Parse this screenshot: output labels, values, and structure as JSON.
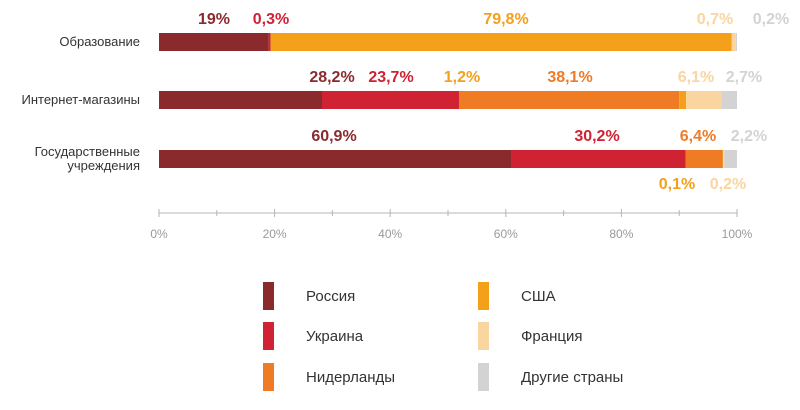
{
  "chart_data": {
    "type": "bar",
    "orientation": "horizontal",
    "stacked": true,
    "categories": [
      "Образование",
      "Интернет-магазины",
      "Государственные учреждения"
    ],
    "category_label_lines": [
      [
        "Образование"
      ],
      [
        "Интернет-магазины"
      ],
      [
        "Государственные",
        "учреждения"
      ]
    ],
    "series": [
      {
        "name": "Россия",
        "color": "#8b2a2d",
        "values": [
          19,
          28.2,
          60.9
        ],
        "labels": [
          "19%",
          "28,2%",
          "60,9%"
        ]
      },
      {
        "name": "Украина",
        "color": "#cf2233",
        "values": [
          0.3,
          23.7,
          30.2
        ],
        "labels": [
          "0,3%",
          "23,7%",
          "30,2%"
        ]
      },
      {
        "name": "Нидерланды",
        "color": "#ef7b25",
        "values": [
          0,
          38.1,
          6.4
        ],
        "labels": [
          "",
          "38,1%",
          "6,4%"
        ]
      },
      {
        "name": "США",
        "color": "#f4a01b",
        "values": [
          79.8,
          1.2,
          0.1
        ],
        "labels": [
          "79,8%",
          "1,2%",
          "0,1%"
        ]
      },
      {
        "name": "Франция",
        "color": "#fad59f",
        "values": [
          0.7,
          6.1,
          0.2
        ],
        "labels": [
          "0,7%",
          "6,1%",
          "0,2%"
        ]
      },
      {
        "name": "Другие страны",
        "color": "#d3d3d3",
        "values": [
          0.2,
          2.7,
          2.2
        ],
        "labels": [
          "0,2%",
          "2,7%",
          "2,2%"
        ]
      }
    ],
    "xlim": [
      0,
      100
    ],
    "xticks": [
      0,
      20,
      40,
      60,
      80,
      100
    ],
    "xtick_labels": [
      "0%",
      "20%",
      "40%",
      "60%",
      "80%",
      "100%"
    ],
    "grid": false,
    "legend_position": "bottom",
    "legend_columns": 2,
    "legend_order": [
      "Россия",
      "США",
      "Украина",
      "Франция",
      "Нидерланды",
      "Другие страны"
    ]
  }
}
